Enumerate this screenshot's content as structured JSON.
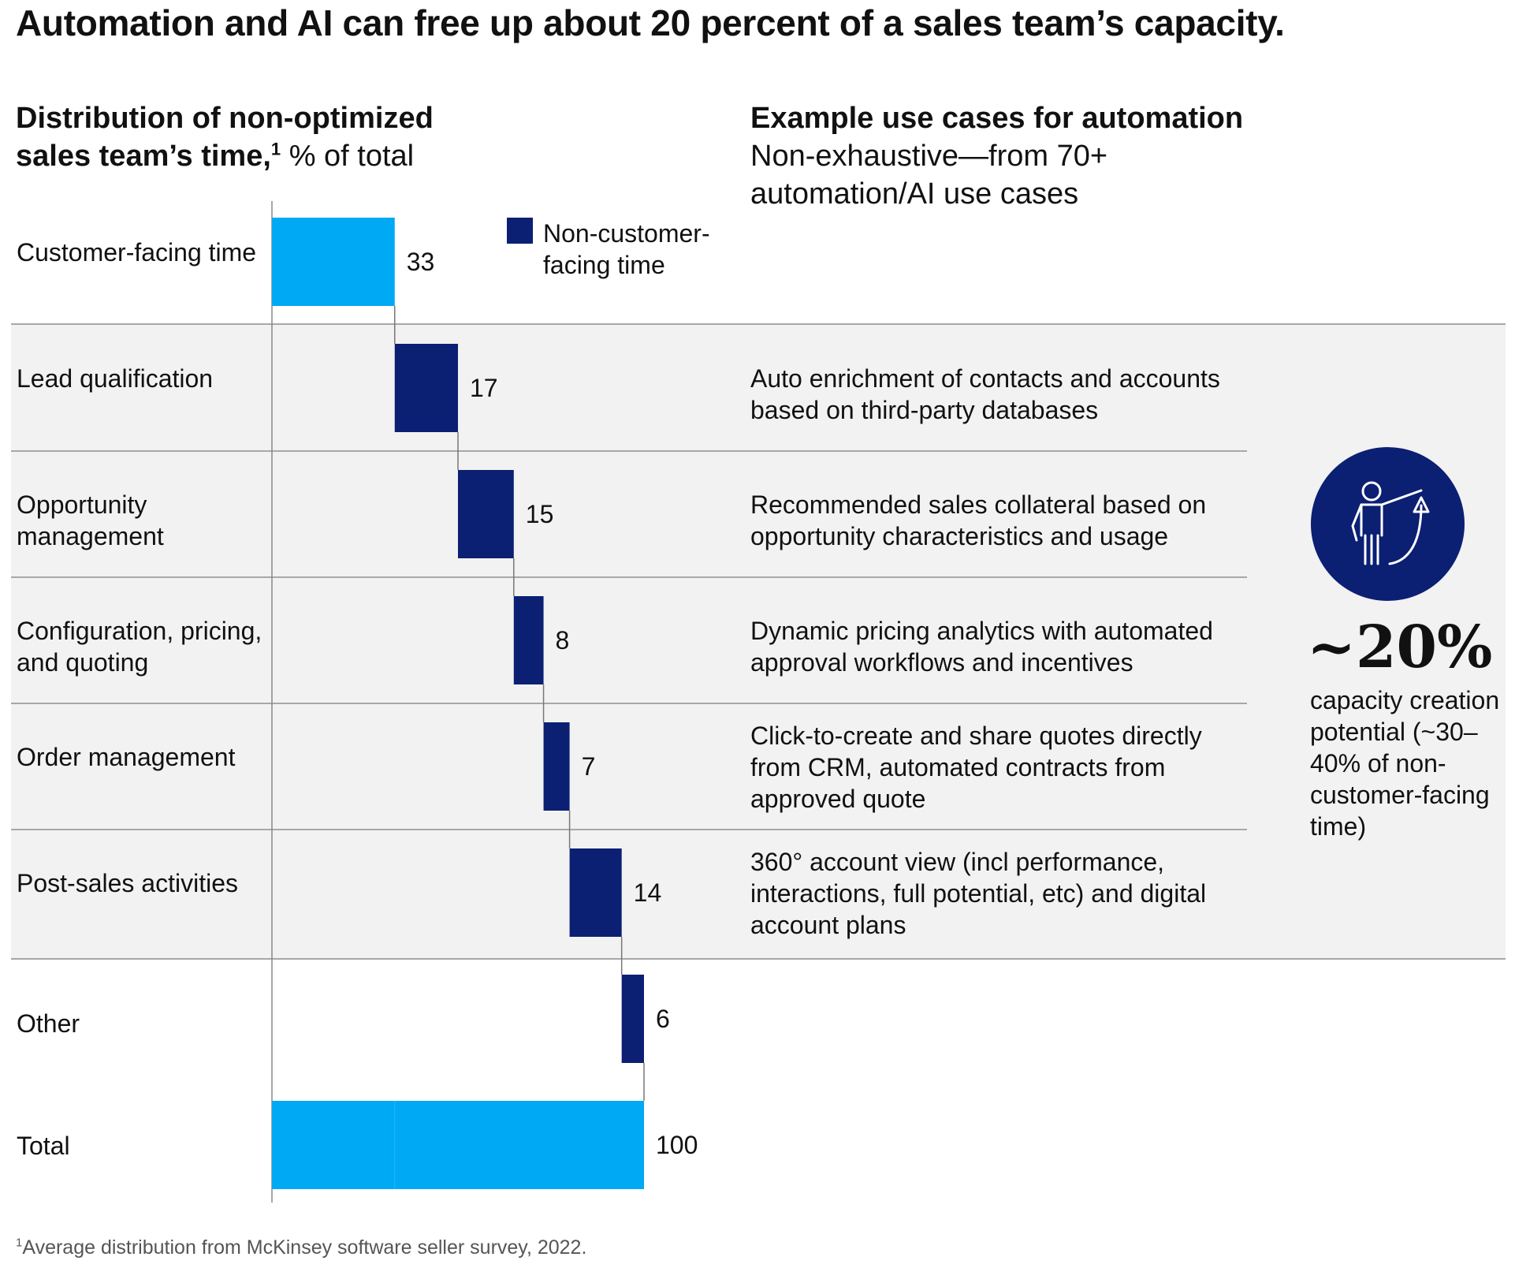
{
  "title": "Automation and AI can free up  about 20 percent of a sales team’s capacity.",
  "left_header": {
    "bold_line1": "Distribution of non-optimized",
    "bold_line2": "sales team’s time,",
    "superscript": "1",
    "unit": " % of total"
  },
  "right_header": {
    "bold": "Example use cases for automation",
    "sub": "Non-exhaustive—from 70+ automation/AI use cases"
  },
  "legend": {
    "label": "Non-customer-facing time",
    "color": "#0b1f73"
  },
  "colors": {
    "customer_facing": "#00a9f4",
    "non_customer_facing": "#0b1f73",
    "band": "#f2f2f2",
    "rule": "#a8a8a8"
  },
  "chart_data": {
    "type": "bar",
    "subtype": "waterfall",
    "title": "Distribution of non-optimized sales team’s time, % of total",
    "categories": [
      "Customer-facing time",
      "Lead qualification",
      "Opportunity management",
      "Configuration, pricing, and quoting",
      "Order management",
      "Post-sales activities",
      "Other",
      "Total"
    ],
    "values": [
      33,
      17,
      15,
      8,
      7,
      14,
      6,
      100
    ],
    "value_labels": [
      "33",
      "17",
      "15",
      "8",
      "7",
      "14",
      "6",
      "100"
    ],
    "kinds": [
      "customer",
      "non",
      "non",
      "non",
      "non",
      "non",
      "non",
      "total"
    ],
    "legend": [
      "Non-customer-facing time"
    ],
    "xlim": [
      0,
      100
    ]
  },
  "rows": [
    {
      "label": "Customer-facing time",
      "use_case": ""
    },
    {
      "label": "Lead qualification",
      "use_case": "Auto enrichment of contacts and accounts based on third-party databases"
    },
    {
      "label": "Opportunity management",
      "use_case": "Recommended sales collateral based on opportunity characteristics and usage"
    },
    {
      "label": "Configuration, pricing, and quoting",
      "use_case": "Dynamic pricing analytics with automated approval workflows and incentives"
    },
    {
      "label": "Order management",
      "use_case": "Click-to-create and share quotes directly from CRM, automated contracts from approved quote"
    },
    {
      "label": "Post-sales activities",
      "use_case": "360° account view (incl performance, interactions, full potential, etc) and digital account plans"
    },
    {
      "label": "Other",
      "use_case": ""
    },
    {
      "label": "Total",
      "use_case": ""
    }
  ],
  "stat": {
    "value": "~20%",
    "description": "capacity creation potential (~30–40% of non-customer-facing time)",
    "icon": "presenter-growth-icon"
  },
  "footnote": {
    "mark": "1",
    "text": "Average distribution from McKinsey software seller survey, 2022."
  }
}
